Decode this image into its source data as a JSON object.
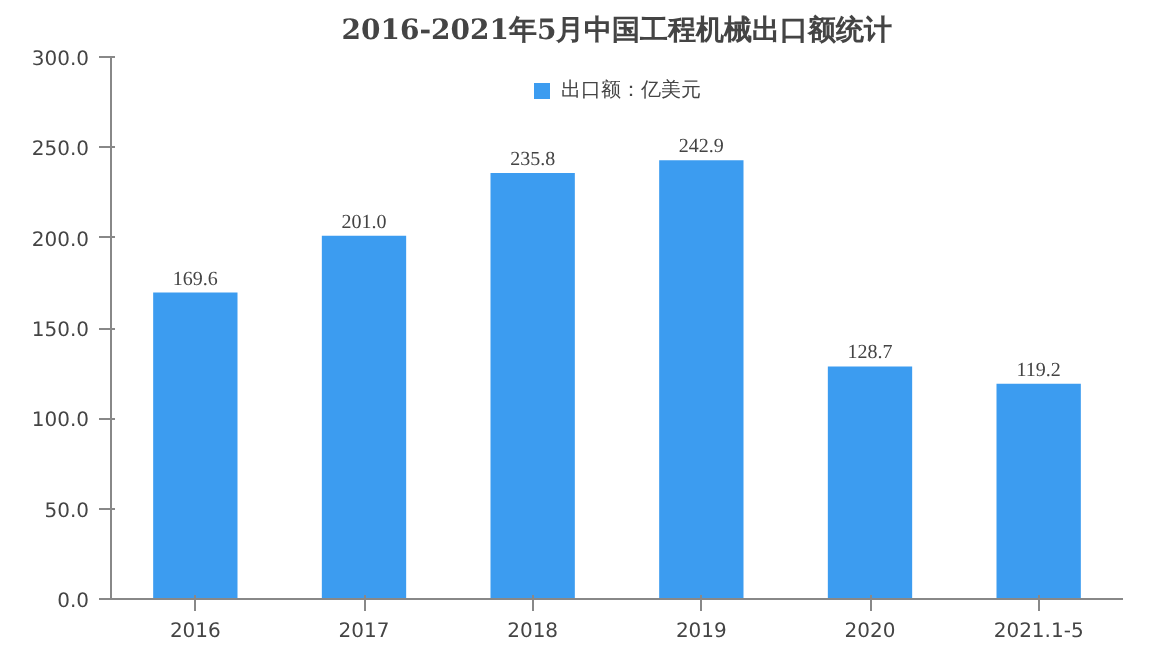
{
  "chart_data": {
    "type": "bar",
    "title": "2016-2021年5月中国工程机械出口额统计",
    "categories": [
      "2016",
      "2017",
      "2018",
      "2019",
      "2020",
      "2021.1-5"
    ],
    "series": [
      {
        "name": "出口额：亿美元",
        "color": "#3c9cf0",
        "values": [
          169.6,
          201.0,
          235.8,
          242.9,
          128.7,
          119.2
        ],
        "value_labels": [
          "169.6",
          "201.0",
          "235.8",
          "242.9",
          "128.7",
          "119.2"
        ]
      }
    ],
    "ylim": [
      0,
      300
    ],
    "yticks": [
      {
        "value": 0,
        "label": "0.0"
      },
      {
        "value": 50,
        "label": "50.0"
      },
      {
        "value": 100,
        "label": "100.0"
      },
      {
        "value": 150,
        "label": "150.0"
      },
      {
        "value": 200,
        "label": "200.0"
      },
      {
        "value": 250,
        "label": "250.0"
      },
      {
        "value": 300,
        "label": "300.0"
      }
    ],
    "grid": false,
    "legend": "top"
  }
}
